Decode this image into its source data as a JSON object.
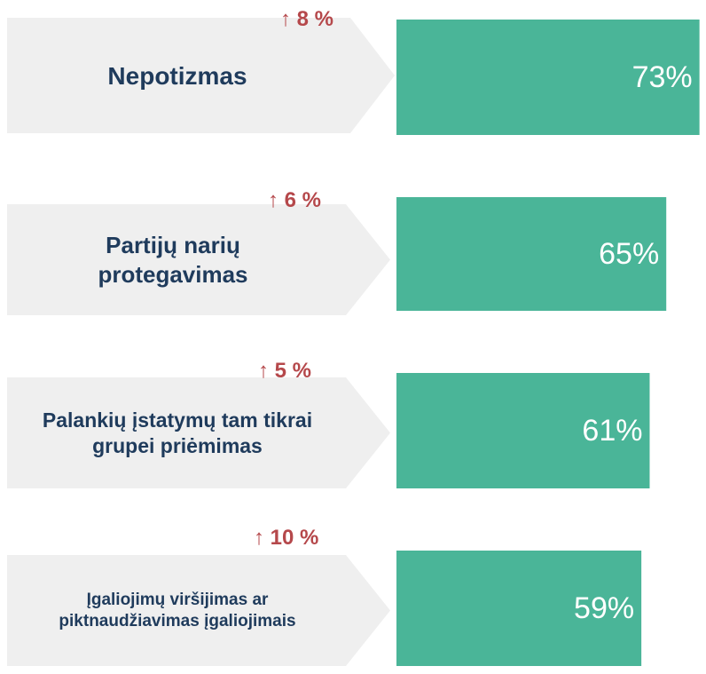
{
  "chart_data": {
    "type": "bar",
    "categories": [
      "Nepotizmas",
      "Partijų narių protegavimas",
      "Palankių įstatymų tam tikrai grupei priėmimas",
      "Įgaliojimų viršijimas ar piktnaudžiavimas įgaliojimais"
    ],
    "values": [
      73,
      65,
      61,
      59
    ],
    "value_labels": [
      "73%",
      "65%",
      "61%",
      "59%"
    ],
    "change_labels": [
      "↑ 8 %",
      "↑ 6 %",
      "↑ 5 %",
      "↑ 10 %"
    ],
    "color": "#4ab598",
    "label_color": "#1f3b5c",
    "change_color": "#b5484b"
  }
}
